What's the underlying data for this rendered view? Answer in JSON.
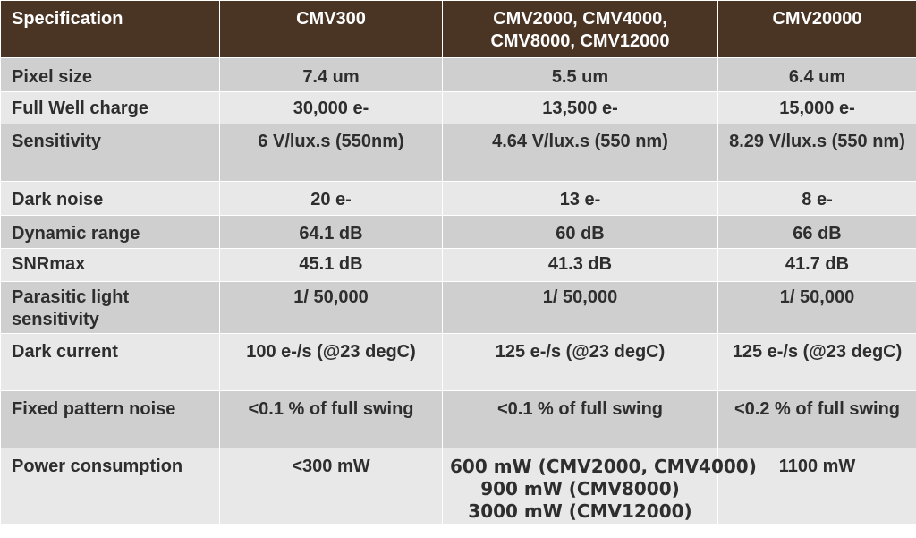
{
  "table": {
    "headers": [
      "Specification",
      "CMV300",
      "CMV2000, CMV4000,\nCMV8000, CMV12000",
      "CMV20000"
    ],
    "header_line2": "CMV8000, CMV12000",
    "header_line1": "CMV2000, CMV4000,",
    "rows": [
      {
        "label": "Pixel size",
        "v1": "7.4 um",
        "v2": "5.5 um",
        "v3": "6.4 um"
      },
      {
        "label": "Full Well charge",
        "v1": "30,000 e-",
        "v2": "13,500 e-",
        "v3": "15,000 e-"
      },
      {
        "label": "Sensitivity",
        "v1": "6 V/lux.s (550nm)",
        "v2": "4.64 V/lux.s (550 nm)",
        "v3": "8.29 V/lux.s (550 nm)"
      },
      {
        "label": "Dark noise",
        "v1": "20 e-",
        "v2": "13 e-",
        "v3": "8 e-"
      },
      {
        "label": "Dynamic range",
        "v1": "64.1 dB",
        "v2": "60 dB",
        "v3": "66 dB"
      },
      {
        "label": "SNRmax",
        "v1": "45.1 dB",
        "v2": "41.3 dB",
        "v3": "41.7 dB"
      },
      {
        "label": "Parasitic light sensitivity",
        "v1": "1/ 50,000",
        "v2": "1/ 50,000",
        "v3": "1/ 50,000"
      },
      {
        "label": "Dark current",
        "v1": "100 e-/s (@23 degC)",
        "v2": "125 e-/s (@23 degC)",
        "v3": "125 e-/s (@23 degC)"
      },
      {
        "label": "Fixed pattern noise",
        "v1": "<0.1 % of full swing",
        "v2": "<0.1 % of full swing",
        "v3": "<0.2 % of full swing"
      },
      {
        "label": "Power consumption",
        "v1": "<300 mW",
        "v2_lines": [
          "600 mW (CMV2000, CMV4000)",
          "900 mW (CMV8000)",
          "3000 mW (CMV12000)"
        ],
        "v3": "1100 mW"
      }
    ]
  },
  "colors": {
    "header_bg": "#4a3424",
    "row_dark": "#cfcfcf",
    "row_light": "#e8e8e8"
  }
}
